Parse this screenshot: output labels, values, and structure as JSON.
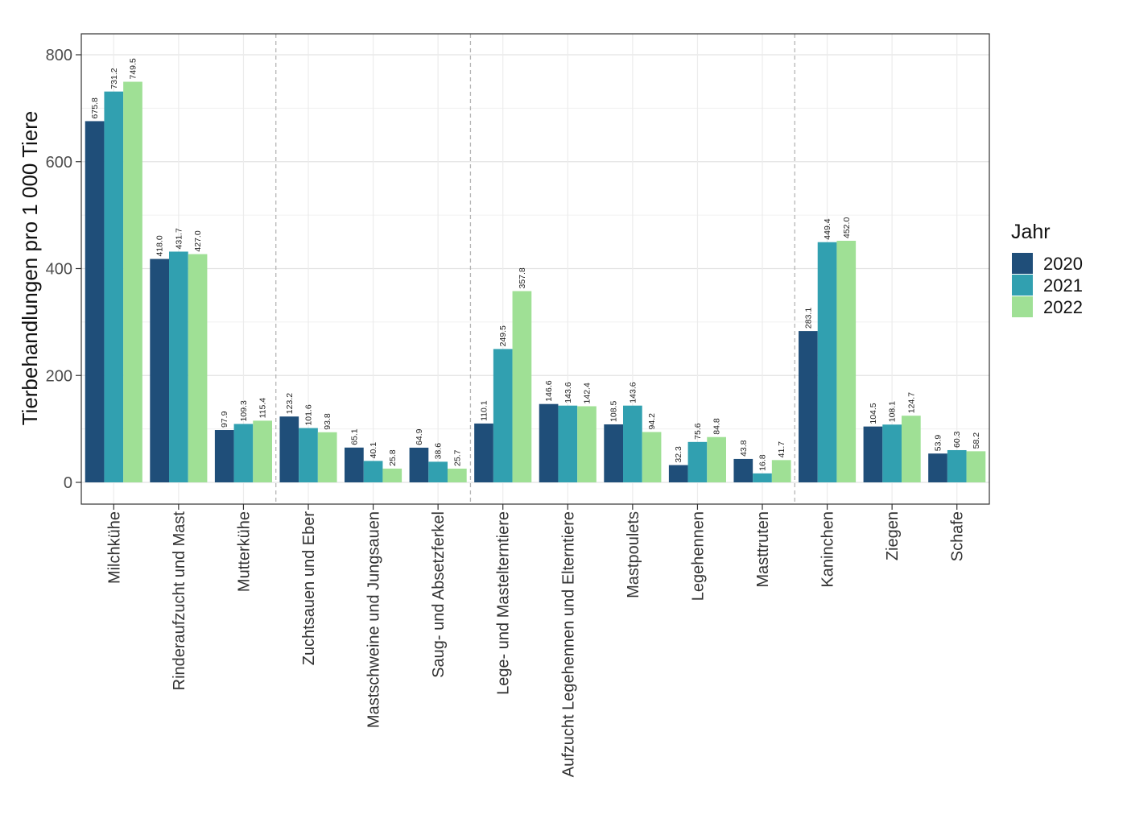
{
  "chart_data": {
    "type": "bar",
    "ylabel": "Tierbehandlungen pro 1 000 Tiere",
    "xlabel": "",
    "ylim": [
      -40,
      840
    ],
    "yticks": [
      0,
      200,
      400,
      600,
      800
    ],
    "yticklabels": [
      "0",
      "200",
      "400",
      "600",
      "800"
    ],
    "grid": true,
    "legend": {
      "title": "Jahr",
      "position": "right"
    },
    "group_separators_after_index": [
      2,
      5,
      10
    ],
    "categories": [
      "Milchkühe",
      "Rinderaufzucht und Mast",
      "Mutterkühe",
      "Zuchtsauen und Eber",
      "Mastschweine und Jungsauen",
      "Saug- und Absetzferkel",
      "Lege- und Mastelterntiere",
      "Aufzucht Legehennen und Elterntiere",
      "Mastpoulets",
      "Legehennen",
      "Masttruten",
      "Kaninchen",
      "Ziegen",
      "Schafe"
    ],
    "series": [
      {
        "name": "2020",
        "color": "#1f4e79",
        "values": [
          675.8,
          418.0,
          97.9,
          123.2,
          65.1,
          64.9,
          110.1,
          146.6,
          108.5,
          32.3,
          43.8,
          283.1,
          104.5,
          53.9
        ],
        "labels": [
          "675.8",
          "418.0",
          "97.9",
          "123.2",
          "65.1",
          "64.9",
          "110.1",
          "146.6",
          "108.5",
          "32.3",
          "43.8",
          "283.1",
          "104.5",
          "53.9"
        ]
      },
      {
        "name": "2021",
        "color": "#31a0b0",
        "values": [
          731.2,
          431.7,
          109.3,
          101.6,
          40.1,
          38.6,
          249.5,
          143.6,
          143.6,
          75.6,
          16.8,
          449.4,
          108.1,
          60.3
        ],
        "labels": [
          "731.2",
          "431.7",
          "109.3",
          "101.6",
          "40.1",
          "38.6",
          "249.5",
          "143.6",
          "143.6",
          "75.6",
          "16.8",
          "449.4",
          "108.1",
          "60.3"
        ]
      },
      {
        "name": "2022",
        "color": "#9fe095",
        "values": [
          749.5,
          427.0,
          115.4,
          93.8,
          25.8,
          25.7,
          357.8,
          142.4,
          94.2,
          84.8,
          41.7,
          452.0,
          124.7,
          58.2
        ],
        "labels": [
          "749.5",
          "427.0",
          "115.4",
          "93.8",
          "25.8",
          "25.7",
          "357.8",
          "142.4",
          "94.2",
          "84.8",
          "41.7",
          "452.0",
          "124.7",
          "58.2"
        ]
      }
    ]
  }
}
